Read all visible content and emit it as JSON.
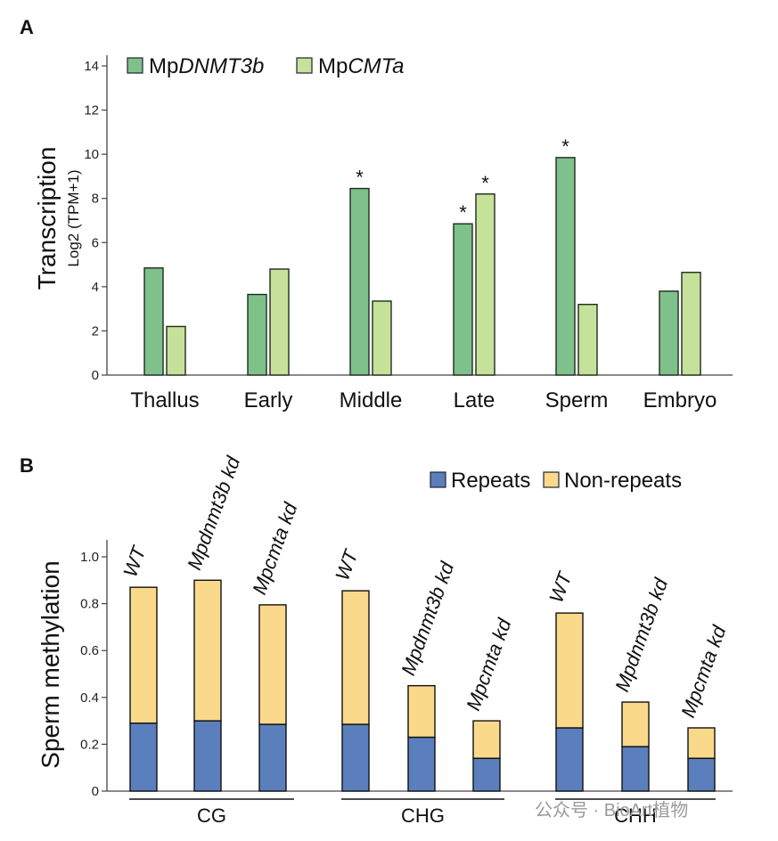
{
  "panel_a_letter": "A",
  "panel_b_letter": "B",
  "watermark": "公众号 · BioArt植物",
  "chart_data": [
    {
      "type": "bar",
      "panel": "A",
      "title": "",
      "ylabel": "Transcription",
      "ylabel_sub": "Log2 (TPM+1)",
      "xlabel": "",
      "ylim": [
        0,
        14
      ],
      "yticks": [
        0,
        2,
        4,
        6,
        8,
        10,
        12,
        14
      ],
      "categories": [
        "Thallus",
        "Early",
        "Middle",
        "Late",
        "Sperm",
        "Embryo"
      ],
      "series": [
        {
          "name": "MpDNMT3b",
          "name_prefix": "Mp",
          "name_italic": "DNMT3b",
          "color": "#7fc18a",
          "values": [
            4.85,
            3.65,
            8.45,
            6.85,
            9.85,
            3.8
          ],
          "marks": [
            "",
            "",
            "*",
            "*",
            "*",
            ""
          ]
        },
        {
          "name": "MpCMTa",
          "name_prefix": "Mp",
          "name_italic": "CMTa",
          "color": "#c6e29a",
          "values": [
            2.2,
            4.8,
            3.35,
            8.2,
            3.2,
            4.65
          ],
          "marks": [
            "",
            "",
            "",
            "*",
            "",
            ""
          ]
        }
      ],
      "legend_position": "top-left"
    },
    {
      "type": "bar",
      "stacked": true,
      "panel": "B",
      "title": "",
      "ylabel": "Sperm methylation",
      "xlabel": "",
      "ylim": [
        0,
        1.0
      ],
      "yticks": [
        "0",
        "0.2",
        "0.4",
        "0.6",
        "0.8",
        "1.0"
      ],
      "groups": [
        "CG",
        "CHG",
        "CHH"
      ],
      "categories": [
        "WT",
        "Mpdnmt3b kd",
        "Mpcmta kd",
        "WT",
        "Mpdnmt3b kd",
        "Mpcmta kd",
        "WT",
        "Mpdnmt3b kd",
        "Mpcmta kd"
      ],
      "series": [
        {
          "name": "Repeats",
          "color": "#5b7fbd",
          "values": [
            0.29,
            0.3,
            0.285,
            0.285,
            0.23,
            0.14,
            0.27,
            0.19,
            0.14
          ]
        },
        {
          "name": "Non-repeats",
          "color": "#fad98a",
          "values": [
            0.58,
            0.6,
            0.51,
            0.57,
            0.22,
            0.16,
            0.49,
            0.19,
            0.13
          ]
        }
      ],
      "legend_position": "top-right"
    }
  ]
}
